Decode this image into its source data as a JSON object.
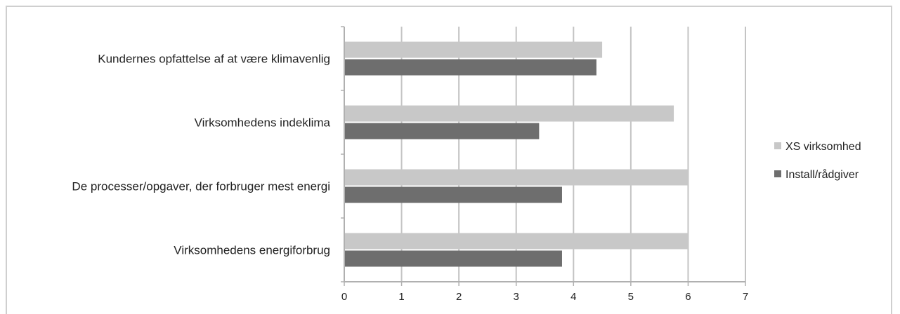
{
  "chart_data": {
    "type": "bar",
    "orientation": "horizontal",
    "title": "",
    "xlabel": "",
    "ylabel": "",
    "categories": [
      "Kundernes opfattelse af at være klimavenlig",
      "Virksomhedens indeklima",
      "De processer/opgaver, der forbruger mest energi",
      "Virksomhedens energiforbrug"
    ],
    "series": [
      {
        "name": "XS virksomhed",
        "values": [
          4.5,
          5.75,
          6.0,
          6.0
        ],
        "color": "#c8c8c8"
      },
      {
        "name": "Install/rådgiver",
        "values": [
          4.4,
          3.4,
          3.8,
          3.8
        ],
        "color": "#6e6e6e"
      }
    ],
    "xlim": [
      0,
      7
    ],
    "xticks": [
      "0",
      "1",
      "2",
      "3",
      "4",
      "5",
      "6",
      "7"
    ],
    "grid": true,
    "legend_position": "right"
  }
}
